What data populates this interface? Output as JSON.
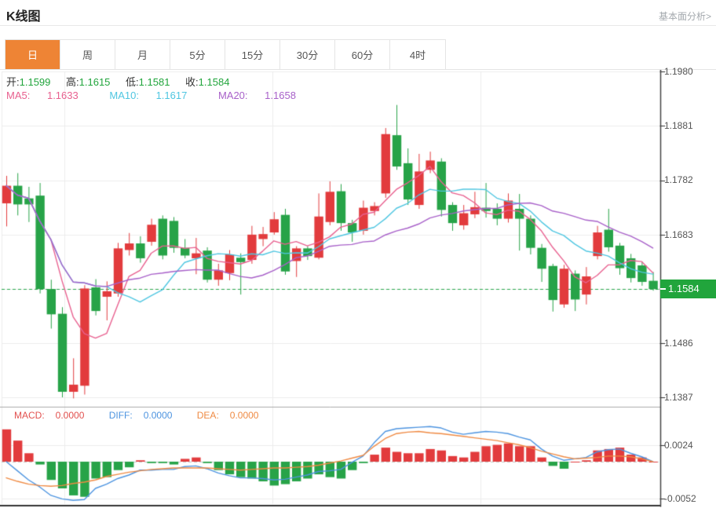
{
  "header": {
    "title": "K线图",
    "link": "基本面分析>"
  },
  "tabs": {
    "items": [
      {
        "label": "日",
        "active": true
      },
      {
        "label": "周"
      },
      {
        "label": "月"
      },
      {
        "label": "5分"
      },
      {
        "label": "15分"
      },
      {
        "label": "30分"
      },
      {
        "label": "60分"
      },
      {
        "label": "4时"
      }
    ]
  },
  "legend": {
    "ohlc": [
      {
        "label": "开:",
        "value": "1.1599"
      },
      {
        "label": "高:",
        "value": "1.1615"
      },
      {
        "label": "低:",
        "value": "1.1581"
      },
      {
        "label": "收:",
        "value": "1.1584"
      }
    ],
    "ma": [
      {
        "label": "MA5:",
        "value": "1.1633"
      },
      {
        "label": "MA10:",
        "value": "1.1617"
      },
      {
        "label": "MA20:",
        "value": "1.1658"
      }
    ]
  },
  "macd_legend": [
    {
      "label": "MACD:",
      "value": "0.0000"
    },
    {
      "label": "DIFF:",
      "value": "0.0000"
    },
    {
      "label": "DEA:",
      "value": "0.0000"
    }
  ],
  "colors": {
    "up": "#e23b3d",
    "down": "#27a348",
    "ma5": "#e8608f",
    "ma10": "#4fc6e1",
    "ma20": "#a861c9",
    "diff": "#4d94e0",
    "dea": "#ef8a43",
    "tag_bg": "#21a53c",
    "current_line": "#2aa74d",
    "grid": "#ececec",
    "axis": "#444444",
    "zero_line": "#c3cbc9",
    "active_tab": "#ee8435",
    "ohlc_value": "#21a53c"
  },
  "chart_data": {
    "type": "candlestick+macd",
    "title": "K线图",
    "legend_position": "top-left",
    "grid": true,
    "price_axis": {
      "side": "right",
      "ticks": [
        "1.1980",
        "1.1881",
        "1.1782",
        "1.1683",
        "1.1584",
        "1.1486",
        "1.1387"
      ],
      "tick_values": [
        1.198,
        1.1881,
        1.1782,
        1.1683,
        1.1584,
        1.1486,
        1.1387
      ],
      "range": {
        "max": 1.198,
        "min": 1.1387
      }
    },
    "macd_axis": {
      "ticks": [
        "0.0024",
        "-0.0052"
      ],
      "tick_values": [
        0.0024,
        -0.0052
      ]
    },
    "current_price": 1.1584,
    "current_price_label": "1.1584",
    "ohlc_readout": {
      "open": 1.1599,
      "high": 1.1615,
      "low": 1.1581,
      "close": 1.1584
    },
    "ma_readout": {
      "ma5": 1.1633,
      "ma10": 1.1617,
      "ma20": 1.1658
    },
    "ma_periods": [
      5,
      10,
      20
    ],
    "x_gridlines": [
      82,
      347,
      612
    ],
    "candles": [
      [
        1.174,
        1.179,
        1.1698,
        1.1772
      ],
      [
        1.1772,
        1.1795,
        1.1718,
        1.1738
      ],
      [
        1.1749,
        1.177,
        1.1706,
        1.1738
      ],
      [
        1.1754,
        1.1777,
        1.1576,
        1.1584
      ],
      [
        1.1584,
        1.1601,
        1.1512,
        1.1538
      ],
      [
        1.1539,
        1.1551,
        1.1387,
        1.1397
      ],
      [
        1.1397,
        1.1458,
        1.1385,
        1.141
      ],
      [
        1.1408,
        1.1591,
        1.1392,
        1.1585
      ],
      [
        1.1587,
        1.1602,
        1.1536,
        1.1544
      ],
      [
        1.157,
        1.1598,
        1.1527,
        1.158
      ],
      [
        1.1576,
        1.1668,
        1.157,
        1.1658
      ],
      [
        1.1655,
        1.1686,
        1.1645,
        1.1667
      ],
      [
        1.1667,
        1.168,
        1.1632,
        1.164
      ],
      [
        1.167,
        1.1712,
        1.1663,
        1.1701
      ],
      [
        1.1712,
        1.1718,
        1.1638,
        1.1645
      ],
      [
        1.1708,
        1.1715,
        1.165,
        1.1659
      ],
      [
        1.1659,
        1.1675,
        1.164,
        1.1645
      ],
      [
        1.164,
        1.1677,
        1.1611,
        1.1649
      ],
      [
        1.1654,
        1.166,
        1.1596,
        1.1601
      ],
      [
        1.1601,
        1.163,
        1.159,
        1.1618
      ],
      [
        1.1613,
        1.1655,
        1.16,
        1.1647
      ],
      [
        1.1641,
        1.1649,
        1.1574,
        1.1633
      ],
      [
        1.1637,
        1.1699,
        1.163,
        1.1683
      ],
      [
        1.1675,
        1.1697,
        1.1662,
        1.1684
      ],
      [
        1.1687,
        1.1724,
        1.1683,
        1.1711
      ],
      [
        1.1719,
        1.173,
        1.161,
        1.1616
      ],
      [
        1.1635,
        1.1662,
        1.1606,
        1.1658
      ],
      [
        1.1658,
        1.1662,
        1.1637,
        1.1644
      ],
      [
        1.1641,
        1.1758,
        1.1638,
        1.1716
      ],
      [
        1.1706,
        1.178,
        1.17,
        1.1761
      ],
      [
        1.1762,
        1.1775,
        1.169,
        1.1704
      ],
      [
        1.1704,
        1.171,
        1.167,
        1.1687
      ],
      [
        1.169,
        1.1745,
        1.1683,
        1.1732
      ],
      [
        1.1726,
        1.1742,
        1.1718,
        1.1735
      ],
      [
        1.1758,
        1.1877,
        1.175,
        1.1866
      ],
      [
        1.1864,
        1.1919,
        1.1801,
        1.1807
      ],
      [
        1.1813,
        1.184,
        1.1737,
        1.1747
      ],
      [
        1.1737,
        1.183,
        1.173,
        1.1798
      ],
      [
        1.1801,
        1.1834,
        1.1795,
        1.1818
      ],
      [
        1.1816,
        1.1822,
        1.1716,
        1.1728
      ],
      [
        1.1737,
        1.1742,
        1.169,
        1.1704
      ],
      [
        1.17,
        1.1737,
        1.1692,
        1.1722
      ],
      [
        1.172,
        1.1761,
        1.1713,
        1.1733
      ],
      [
        1.1732,
        1.1777,
        1.1714,
        1.1726
      ],
      [
        1.173,
        1.174,
        1.17,
        1.1712
      ],
      [
        1.1712,
        1.1758,
        1.1705,
        1.1745
      ],
      [
        1.173,
        1.1757,
        1.1654,
        1.1712
      ],
      [
        1.1712,
        1.1718,
        1.1647,
        1.1659
      ],
      [
        1.1659,
        1.1666,
        1.1597,
        1.1621
      ],
      [
        1.1626,
        1.163,
        1.1543,
        1.1564
      ],
      [
        1.1556,
        1.1628,
        1.155,
        1.1621
      ],
      [
        1.1612,
        1.1618,
        1.1544,
        1.1565
      ],
      [
        1.1574,
        1.1624,
        1.1556,
        1.1607
      ],
      [
        1.1644,
        1.1699,
        1.1638,
        1.1687
      ],
      [
        1.1692,
        1.173,
        1.1652,
        1.166
      ],
      [
        1.1663,
        1.1668,
        1.161,
        1.1622
      ],
      [
        1.164,
        1.1648,
        1.1596,
        1.1604
      ],
      [
        1.1627,
        1.1634,
        1.159,
        1.1597
      ],
      [
        1.1599,
        1.1615,
        1.1581,
        1.1584
      ]
    ],
    "macd": {
      "histogram_rule": "2*(diff-dea)",
      "diff": [
        0.0,
        -0.0013,
        -0.0026,
        -0.0036,
        -0.0048,
        -0.0053,
        -0.0055,
        -0.0054,
        -0.0038,
        -0.0032,
        -0.0024,
        -0.0019,
        -0.0012,
        -0.0012,
        -0.0011,
        -0.0011,
        -0.0007,
        -0.0006,
        -0.001,
        -0.0016,
        -0.002,
        -0.0023,
        -0.0023,
        -0.0024,
        -0.0026,
        -0.0025,
        -0.0022,
        -0.0019,
        -0.0014,
        -0.0013,
        -0.0011,
        -0.0001,
        0.0008,
        0.0027,
        0.0043,
        0.0047,
        0.0048,
        0.0049,
        0.005,
        0.0048,
        0.0042,
        0.0039,
        0.0041,
        0.0043,
        0.0042,
        0.004,
        0.0035,
        0.0031,
        0.0018,
        0.0008,
        0.0002,
        0.0004,
        0.0006,
        0.0014,
        0.0017,
        0.0018,
        0.0012,
        0.0007,
        0.0
      ],
      "dea": [
        -0.0023,
        -0.0028,
        -0.0032,
        -0.0034,
        -0.0035,
        -0.0034,
        -0.0031,
        -0.0029,
        -0.0026,
        -0.0021,
        -0.0018,
        -0.0015,
        -0.0013,
        -0.0011,
        -0.001,
        -0.0009,
        -0.0009,
        -0.0009,
        -0.0009,
        -0.001,
        -0.0011,
        -0.0012,
        -0.0011,
        -0.001,
        -0.0009,
        -0.0009,
        -0.0008,
        -0.0007,
        -0.0005,
        -0.0002,
        0.0001,
        0.0005,
        0.0009,
        0.0022,
        0.0033,
        0.004,
        0.0042,
        0.0043,
        0.0041,
        0.004,
        0.0038,
        0.0036,
        0.0034,
        0.0032,
        0.003,
        0.0027,
        0.0024,
        0.002,
        0.0015,
        0.0011,
        0.0007,
        0.0004,
        0.0005,
        0.0006,
        0.0008,
        0.0008,
        0.0007,
        0.0004,
        0.0
      ]
    }
  }
}
